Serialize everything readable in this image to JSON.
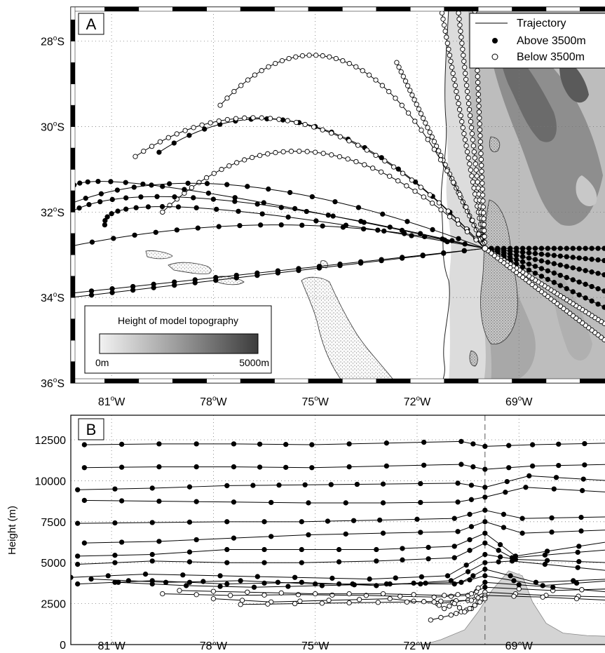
{
  "chart_data": [
    {
      "panel_label": "A",
      "type": "scatter",
      "xlim": [
        -82.2,
        -66.3
      ],
      "ylim": [
        -36,
        -27.2
      ],
      "x_ticks": [
        -81,
        -78,
        -75,
        -72,
        -69
      ],
      "x_tick_labels": [
        "81",
        "78",
        "75",
        "72",
        "69"
      ],
      "y_ticks": [
        -28,
        -30,
        -32,
        -34,
        -36
      ],
      "y_tick_labels": [
        "28",
        "30",
        "32",
        "34",
        "36"
      ],
      "x_tick_suffix": "W",
      "y_tick_suffix": "S",
      "degree_mark": "o",
      "grid": true,
      "legend_position": "top-right",
      "legend": {
        "line": "Trajectory",
        "filled": "Above 3500m",
        "open": "Below 3500m"
      },
      "colorbar": {
        "title": "Height of model topography",
        "min_label": "0m",
        "max_label": "5000m",
        "range": [
          0,
          5000
        ]
      },
      "source_point": [
        -70.0,
        -32.85
      ],
      "series": [
        {
          "start": [
            -71.3,
            -27.2
          ],
          "end": [
            -70.0,
            -32.85
          ],
          "style": "open"
        },
        {
          "start": [
            -70.8,
            -27.2
          ],
          "end": [
            -70.0,
            -32.85
          ],
          "style": "open"
        },
        {
          "start": [
            -70.3,
            -27.3
          ],
          "end": [
            -70.0,
            -32.85
          ],
          "style": "open"
        },
        {
          "start": [
            -72.6,
            -28.5
          ],
          "end": [
            -70.0,
            -32.85
          ],
          "style": "open"
        },
        {
          "start": [
            -77.8,
            -29.5
          ],
          "end": [
            -70.0,
            -32.85
          ],
          "style": "open",
          "peak": [
            -73.8,
            -28.6
          ]
        },
        {
          "start": [
            -79.6,
            -30.6
          ],
          "end": [
            -70.0,
            -32.85
          ],
          "style": "filled",
          "peak": [
            -75.0,
            -30.0
          ]
        },
        {
          "start": [
            -80.3,
            -30.7
          ],
          "end": [
            -70.0,
            -32.85
          ],
          "style": "open",
          "peak": [
            -75.3,
            -29.95
          ]
        },
        {
          "start": [
            -79.5,
            -32.0
          ],
          "end": [
            -70.0,
            -32.85
          ],
          "style": "open",
          "peak": [
            -75.0,
            -30.6
          ]
        },
        {
          "start": [
            -82.2,
            -31.6
          ],
          "end": [
            -70.0,
            -32.85
          ],
          "style": "filled",
          "peak": [
            -79.5,
            -31.4
          ]
        },
        {
          "start": [
            -82.2,
            -31.8
          ],
          "end": [
            -70.0,
            -32.85
          ],
          "style": "filled",
          "peak": [
            -77.0,
            -31.4
          ]
        },
        {
          "start": [
            -82.2,
            -32.0
          ],
          "end": [
            -70.0,
            -32.85
          ],
          "style": "filled",
          "peak": [
            -78.0,
            -31.7
          ]
        },
        {
          "start": [
            -81.2,
            -32.3
          ],
          "end": [
            -70.0,
            -32.85
          ],
          "style": "filled",
          "peak": [
            -78.5,
            -31.9
          ]
        },
        {
          "start": [
            -82.2,
            -32.8
          ],
          "end": [
            -70.0,
            -32.85
          ],
          "style": "filled",
          "peak": [
            -76.0,
            -32.3
          ]
        },
        {
          "start": [
            -82.2,
            -33.9
          ],
          "end": [
            -70.0,
            -32.85
          ],
          "style": "filled"
        },
        {
          "start": [
            -82.2,
            -34.0
          ],
          "end": [
            -70.0,
            -32.85
          ],
          "style": "filled"
        },
        {
          "start": [
            -66.3,
            -32.85
          ],
          "end": [
            -70.0,
            -32.85
          ],
          "style": "filled"
        },
        {
          "start": [
            -66.3,
            -33.15
          ],
          "end": [
            -70.0,
            -32.85
          ],
          "style": "filled"
        },
        {
          "start": [
            -66.3,
            -33.5
          ],
          "end": [
            -70.0,
            -32.85
          ],
          "style": "filled"
        },
        {
          "start": [
            -66.3,
            -33.9
          ],
          "end": [
            -70.0,
            -32.85
          ],
          "style": "filled"
        },
        {
          "start": [
            -66.3,
            -34.3
          ],
          "end": [
            -70.0,
            -32.85
          ],
          "style": "filled"
        },
        {
          "start": [
            -66.3,
            -34.7
          ],
          "end": [
            -70.0,
            -32.85
          ],
          "style": "open"
        },
        {
          "start": [
            -66.3,
            -35.1
          ],
          "end": [
            -70.0,
            -32.85
          ],
          "style": "open"
        }
      ]
    },
    {
      "panel_label": "B",
      "type": "line",
      "xlim": [
        -82.2,
        -66.3
      ],
      "ylim": [
        0,
        14000
      ],
      "x_ticks": [
        -81,
        -78,
        -75,
        -72,
        -69
      ],
      "x_tick_labels": [
        "81",
        "78",
        "75",
        "72",
        "69"
      ],
      "x_tick_suffix": "W",
      "degree_mark": "o",
      "y_ticks": [
        0,
        2500,
        5000,
        7500,
        10000,
        12500
      ],
      "y_tick_labels": [
        "0",
        "2500",
        "5000",
        "7500",
        "10000",
        "12500"
      ],
      "ylabel": "Height (m)",
      "grid": true,
      "vertical_marker_x": -70.0,
      "threshold": 3500,
      "terrain": [
        {
          "x": -71.8,
          "y": 0
        },
        {
          "x": -71.3,
          "y": 300
        },
        {
          "x": -70.6,
          "y": 900
        },
        {
          "x": -70.2,
          "y": 2000
        },
        {
          "x": -69.8,
          "y": 3300
        },
        {
          "x": -69.3,
          "y": 4500
        },
        {
          "x": -68.9,
          "y": 4200
        },
        {
          "x": -68.6,
          "y": 2600
        },
        {
          "x": -68.2,
          "y": 1300
        },
        {
          "x": -67.7,
          "y": 700
        },
        {
          "x": -67.0,
          "y": 550
        },
        {
          "x": -66.3,
          "y": 500
        }
      ],
      "series": [
        {
          "x": [
            -81.8,
            -79.6,
            -77.4,
            -75.1,
            -72.9,
            -70.7,
            -70.0,
            -68.6,
            -66.3
          ],
          "y": [
            12200,
            12250,
            12250,
            12200,
            12300,
            12400,
            12100,
            12200,
            12300
          ]
        },
        {
          "x": [
            -81.8,
            -79.6,
            -77.4,
            -75.1,
            -72.9,
            -70.7,
            -70.0,
            -68.6,
            -66.3
          ],
          "y": [
            10800,
            10850,
            10850,
            10800,
            10900,
            11000,
            10700,
            10900,
            11000
          ]
        },
        {
          "x": [
            -82.0,
            -79.8,
            -77.6,
            -75.3,
            -73.0,
            -70.8,
            -70.0,
            -68.7,
            -66.3
          ],
          "y": [
            9450,
            9550,
            9700,
            9750,
            9800,
            9850,
            9600,
            10300,
            10000
          ]
        },
        {
          "x": [
            -81.8,
            -79.6,
            -77.4,
            -75.2,
            -73.0,
            -70.8,
            -70.0,
            -68.8,
            -66.3
          ],
          "y": [
            8800,
            8750,
            8700,
            8650,
            8650,
            8700,
            9000,
            9600,
            9300
          ]
        },
        {
          "x": [
            -82.0,
            -79.8,
            -77.6,
            -75.4,
            -73.1,
            -70.9,
            -70.0,
            -68.9,
            -66.3
          ],
          "y": [
            7400,
            7450,
            7500,
            7500,
            7600,
            7700,
            8200,
            7700,
            7800
          ]
        },
        {
          "x": [
            -81.8,
            -79.6,
            -77.4,
            -75.2,
            -73.0,
            -70.8,
            -70.0,
            -68.9,
            -66.3
          ],
          "y": [
            6200,
            6300,
            6500,
            6700,
            6800,
            6900,
            7500,
            6800,
            7000
          ]
        },
        {
          "x": [
            -82.0,
            -79.8,
            -77.6,
            -75.4,
            -73.2,
            -70.9,
            -70.0,
            -69.1,
            -66.3
          ],
          "y": [
            5400,
            5500,
            5800,
            5800,
            5800,
            6000,
            6800,
            5400,
            6300
          ]
        },
        {
          "x": [
            -82.0,
            -79.8,
            -77.6,
            -75.4,
            -73.2,
            -70.9,
            -70.0,
            -69.2,
            -66.3
          ],
          "y": [
            4900,
            5100,
            5000,
            5000,
            5100,
            5300,
            6200,
            5300,
            5800
          ]
        },
        {
          "x": [
            -82.2,
            -80.0,
            -77.8,
            -75.6,
            -73.4,
            -71.1,
            -70.0,
            -69.1,
            -66.3
          ],
          "y": [
            4100,
            4300,
            4200,
            4100,
            4000,
            4200,
            5500,
            5200,
            5000
          ]
        },
        {
          "x": [
            -82.0,
            -79.8,
            -77.6,
            -75.4,
            -73.2,
            -71.0,
            -70.0,
            -69.2,
            -66.3
          ],
          "y": [
            3700,
            3900,
            3700,
            3800,
            3600,
            3900,
            5000,
            5100,
            4500
          ]
        },
        {
          "x": [
            -81.6,
            -79.4,
            -77.2,
            -75.0,
            -72.8,
            -70.7,
            -70.0,
            -68.5,
            -66.3
          ],
          "y": [
            4000,
            3800,
            3900,
            3700,
            3700,
            3800,
            4600,
            3800,
            4000
          ]
        },
        {
          "x": [
            -80.8,
            -78.8,
            -76.8,
            -74.8,
            -72.9,
            -70.9,
            -70.0,
            -68.3,
            -66.3
          ],
          "y": [
            3800,
            3600,
            3500,
            3600,
            3700,
            3700,
            4200,
            3600,
            3900
          ]
        },
        {
          "x": [
            -79.5,
            -77.5,
            -75.5,
            -73.5,
            -71.5,
            -70.5,
            -70.0,
            -68.0,
            -66.3
          ],
          "y": [
            3100,
            3000,
            3050,
            3000,
            2900,
            3000,
            3500,
            3300,
            3400
          ]
        },
        {
          "x": [
            -79.0,
            -77.0,
            -75.0,
            -73.0,
            -71.2,
            -70.4,
            -70.0,
            -68.0,
            -66.3
          ],
          "y": [
            3300,
            3200,
            3100,
            3100,
            3000,
            3100,
            3800,
            3500,
            3200
          ]
        },
        {
          "x": [
            -78.0,
            -76.3,
            -74.6,
            -72.8,
            -71.4,
            -70.5,
            -70.0,
            -68.2,
            -66.3
          ],
          "y": [
            2800,
            2600,
            2700,
            2800,
            2500,
            2700,
            3200,
            3000,
            2900
          ]
        },
        {
          "x": [
            -77.2,
            -75.6,
            -74.0,
            -72.3,
            -71.3,
            -70.4,
            -70.0,
            -68.3,
            -66.3
          ],
          "y": [
            2450,
            2500,
            2550,
            2600,
            2650,
            2700,
            3000,
            2900,
            2700
          ]
        },
        {
          "x": [
            -71.6,
            -71.0,
            -70.7,
            -70.4,
            -70.2,
            -70.0
          ],
          "y": [
            1500,
            1800,
            2000,
            2200,
            2600,
            2900
          ]
        },
        {
          "x": [
            -71.5,
            -71.2,
            -70.9,
            -70.6,
            -70.3,
            -70.0
          ],
          "y": [
            2600,
            2200,
            2500,
            2000,
            2400,
            2800
          ]
        }
      ]
    }
  ]
}
